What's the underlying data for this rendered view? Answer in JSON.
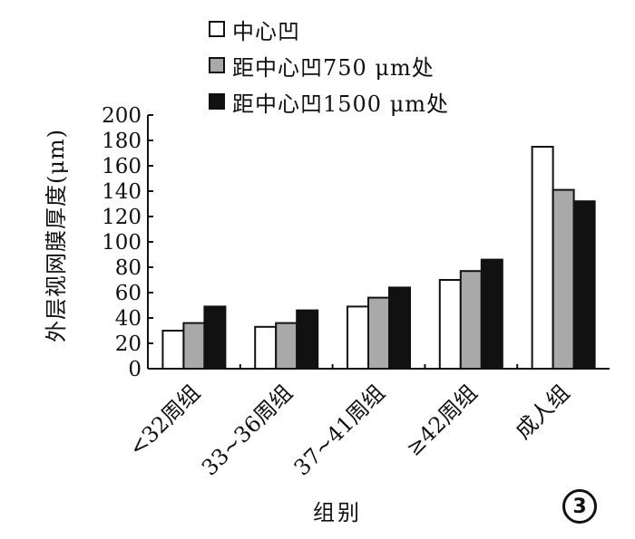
{
  "chart_data": {
    "type": "bar",
    "categories": [
      "<32周组",
      "33~36周组",
      "37~41周组",
      "≥42周组",
      "成人组"
    ],
    "series": [
      {
        "name": "中心凹",
        "values": [
          30,
          33,
          49,
          70,
          175
        ],
        "color": "#ffffff"
      },
      {
        "name": "距中心凹750 μm处",
        "values": [
          36,
          36,
          56,
          77,
          141
        ],
        "color": "#a9a9a9"
      },
      {
        "name": "距中心凹1500 μm处",
        "values": [
          49,
          46,
          64,
          86,
          132
        ],
        "color": "#111111"
      }
    ],
    "ylabel": "外层视网膜厚度(μm)",
    "xlabel": "组别",
    "ylim": [
      0,
      200
    ],
    "yticks": [
      0,
      20,
      40,
      60,
      80,
      100,
      120,
      140,
      160,
      180,
      200
    ],
    "legend_position": "top",
    "grid": false
  },
  "figure_label": "3"
}
